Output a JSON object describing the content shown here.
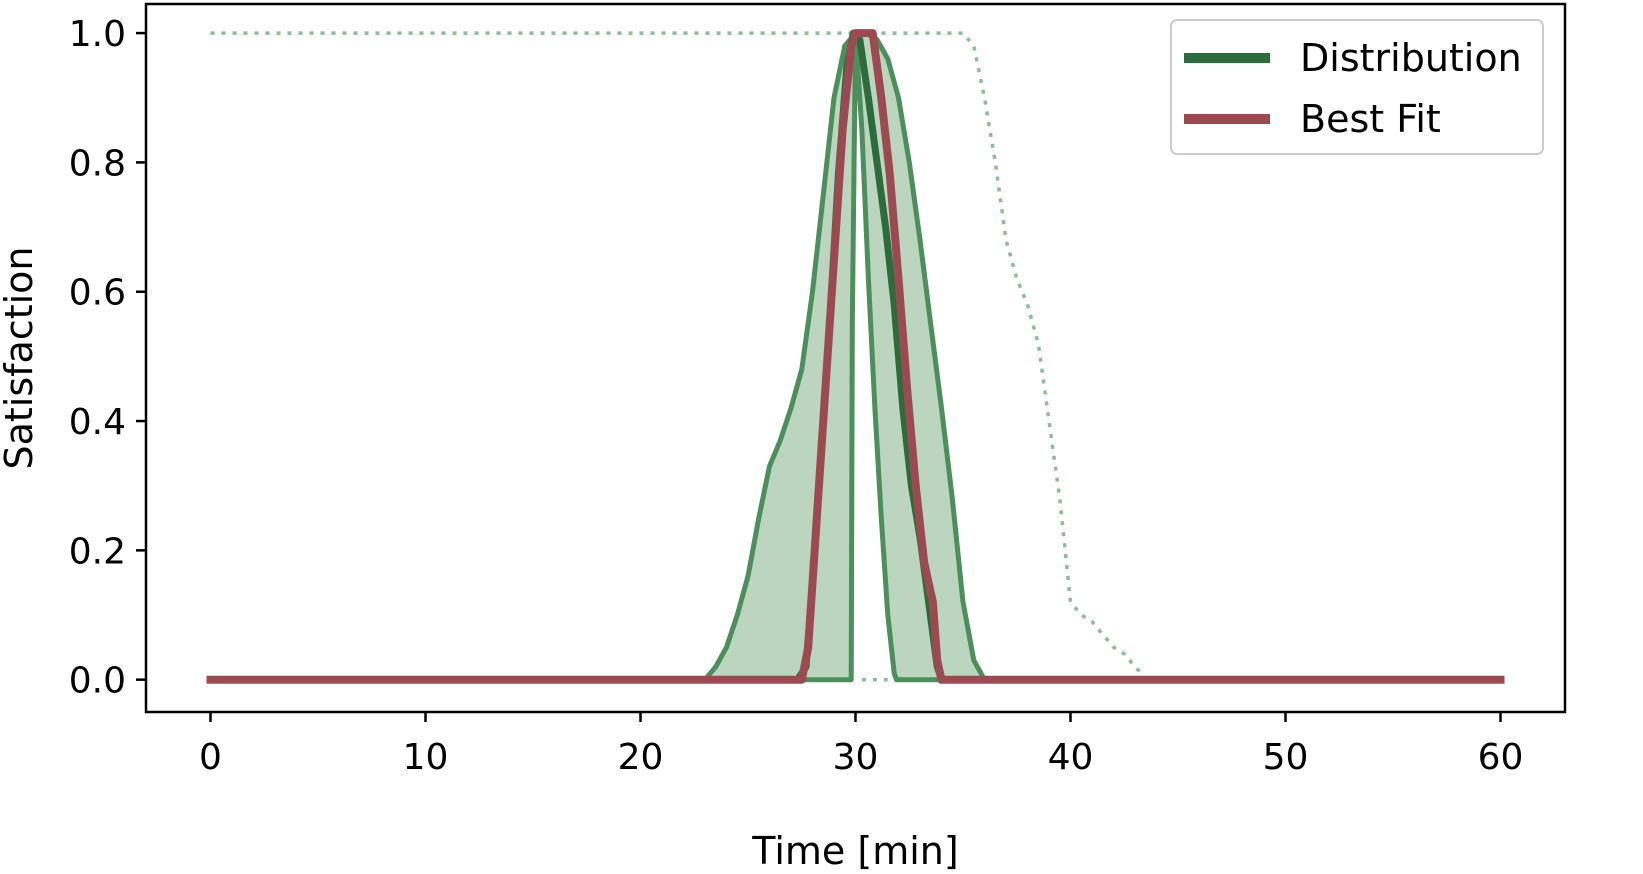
{
  "chart_data": {
    "type": "line",
    "title": "",
    "xlabel": "Time [min]",
    "ylabel": "Satisfaction",
    "xlim": [
      -3,
      63
    ],
    "ylim": [
      -0.05,
      1.045
    ],
    "xticks": [
      0,
      10,
      20,
      30,
      40,
      50,
      60
    ],
    "xtick_labels": [
      "0",
      "10",
      "20",
      "30",
      "40",
      "50",
      "60"
    ],
    "yticks": [
      0.0,
      0.2,
      0.4,
      0.6,
      0.8,
      1.0
    ],
    "ytick_labels": [
      "0.0",
      "0.2",
      "0.4",
      "0.6",
      "0.8",
      "1.0"
    ],
    "grid": false,
    "legend_position": "top-right",
    "colors": {
      "distribution": "#2e6b3c",
      "band_fill": "#bcd5be",
      "band_edge": "#4d8f5c",
      "envelope_dotted": "#8fbc98",
      "best_fit": "#9b4a52"
    },
    "legend": [
      {
        "label": "Distribution",
        "color": "#2e6b3c"
      },
      {
        "label": "Best Fit",
        "color": "#9b4a52"
      }
    ],
    "series": [
      {
        "name": "Distribution",
        "role": "median",
        "x": [
          0,
          27.3,
          27.7,
          28.0,
          28.4,
          28.8,
          29.2,
          29.6,
          29.9,
          30.2,
          30.6,
          31.0,
          31.4,
          31.8,
          32.2,
          32.6,
          33.0,
          33.4,
          33.8,
          34.0,
          60
        ],
        "y": [
          0,
          0,
          0.02,
          0.15,
          0.35,
          0.55,
          0.78,
          0.95,
          1.0,
          0.99,
          0.9,
          0.8,
          0.7,
          0.58,
          0.42,
          0.3,
          0.22,
          0.12,
          0.02,
          0,
          0
        ]
      },
      {
        "name": "Best Fit",
        "x": [
          0,
          27.5,
          27.8,
          28.2,
          28.6,
          29.0,
          29.4,
          29.8,
          30.0,
          30.8,
          31.2,
          31.6,
          32.0,
          32.4,
          32.8,
          33.2,
          33.6,
          33.8,
          34.0,
          60
        ],
        "y": [
          0,
          0,
          0.05,
          0.25,
          0.45,
          0.65,
          0.85,
          0.98,
          1.0,
          1.0,
          0.9,
          0.78,
          0.62,
          0.45,
          0.3,
          0.18,
          0.12,
          0.03,
          0,
          0
        ]
      }
    ],
    "band": {
      "upper": {
        "x": [
          0,
          23.0,
          23.5,
          24.0,
          24.5,
          25.0,
          25.5,
          26.0,
          26.5,
          27.0,
          27.5,
          28.0,
          28.5,
          29.0,
          29.5,
          30.0,
          30.5,
          31.0,
          31.5,
          32.0,
          32.5,
          33.0,
          33.5,
          34.0,
          34.5,
          35.0,
          35.5,
          36.0,
          60
        ],
        "y": [
          0,
          0,
          0.02,
          0.05,
          0.1,
          0.16,
          0.25,
          0.33,
          0.37,
          0.42,
          0.48,
          0.6,
          0.75,
          0.9,
          0.98,
          1.0,
          1.0,
          0.99,
          0.96,
          0.9,
          0.8,
          0.68,
          0.55,
          0.42,
          0.28,
          0.12,
          0.03,
          0,
          0
        ]
      },
      "lower": {
        "x": [
          0,
          29.8,
          29.85,
          30.0,
          30.3,
          30.6,
          30.9,
          31.2,
          31.5,
          31.8,
          31.9,
          60
        ],
        "y": [
          0,
          0,
          0.55,
          1.0,
          0.85,
          0.62,
          0.42,
          0.25,
          0.1,
          0.01,
          0,
          0
        ]
      }
    },
    "envelope": {
      "x": [
        0,
        35.0,
        35.5,
        36.0,
        36.5,
        37.0,
        37.5,
        38.0,
        38.5,
        39.0,
        39.5,
        40.0,
        40.5,
        41.0,
        41.5,
        42.0,
        42.5,
        43.0,
        43.3,
        30.3,
        31.5
      ],
      "y": [
        1.0,
        1.0,
        0.98,
        0.9,
        0.8,
        0.68,
        0.62,
        0.58,
        0.52,
        0.4,
        0.28,
        0.12,
        0.1,
        0.09,
        0.07,
        0.05,
        0.04,
        0.02,
        0.01,
        0,
        0
      ],
      "segments": [
        [
          0,
          19
        ],
        [
          19,
          21
        ]
      ]
    }
  }
}
